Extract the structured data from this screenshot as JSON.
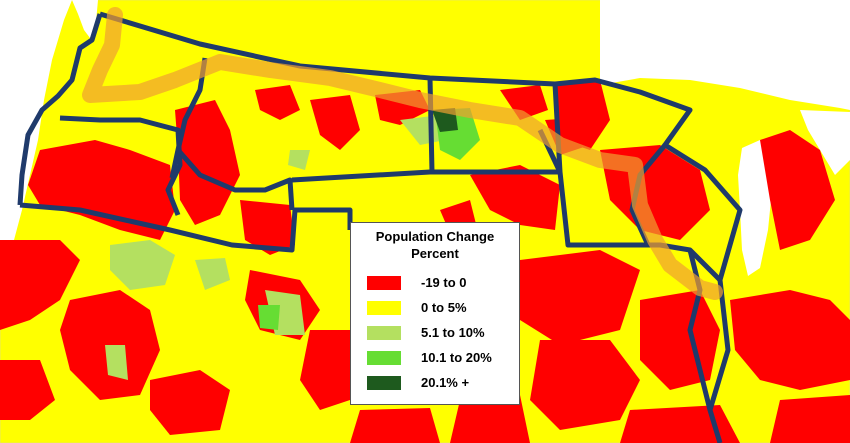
{
  "map": {
    "base_colors": {
      "background": "#ffffff",
      "water": "#ffffff",
      "land": "#ffff00"
    },
    "route_color": "#f0a030",
    "border_color": "#1f3a6b"
  },
  "legend": {
    "title_line1": "Population Change",
    "title_line2": "Percent",
    "items": [
      {
        "label": "-19 to 0",
        "color": "#ff0000"
      },
      {
        "label": "0 to 5%",
        "color": "#ffff00"
      },
      {
        "label": "5.1 to 10%",
        "color": "#b4e060"
      },
      {
        "label": "10.1 to 20%",
        "color": "#66dd33"
      },
      {
        "label": "20.1% +",
        "color": "#1e5a1e"
      }
    ]
  }
}
